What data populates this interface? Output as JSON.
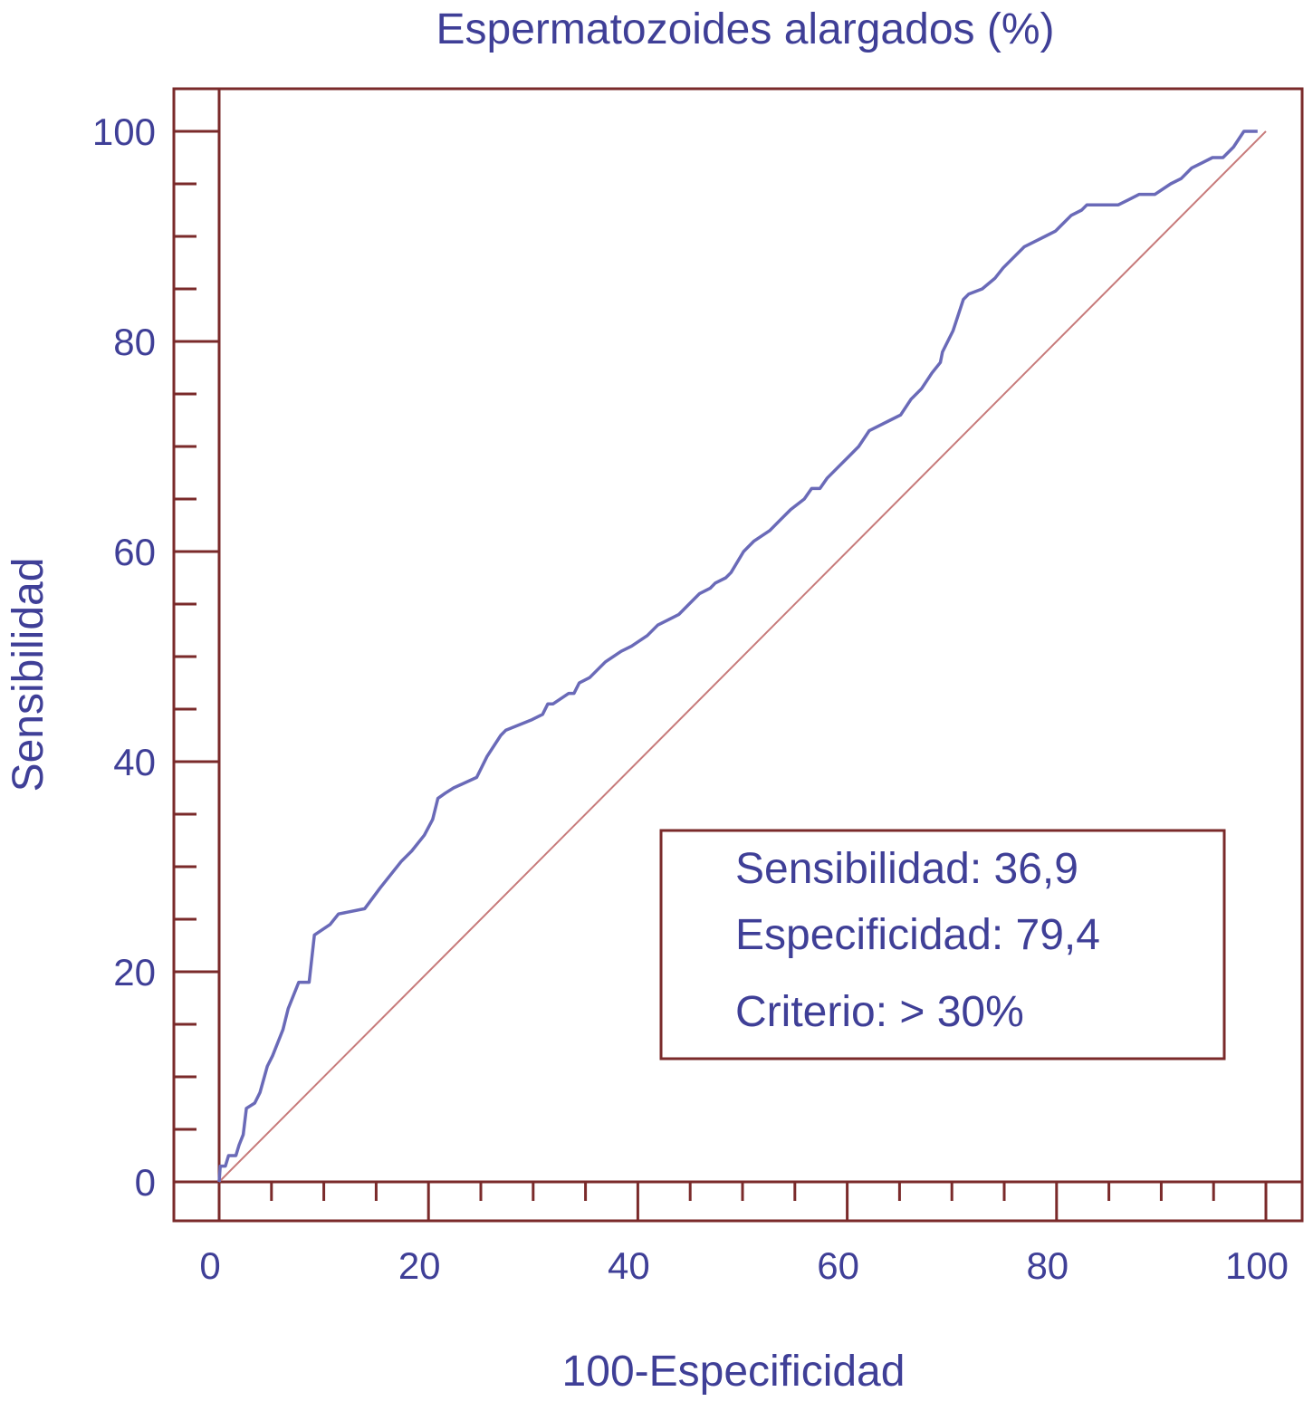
{
  "chart_data": {
    "type": "line",
    "title": "Espermatozoides alargados (%)",
    "xlabel": "100-Especificidad",
    "ylabel": "Sensibilidad",
    "xlim": [
      0,
      100
    ],
    "ylim": [
      0,
      100
    ],
    "x_ticks": [
      "0",
      "20",
      "40",
      "60",
      "80",
      "100"
    ],
    "y_ticks": [
      "0",
      "20",
      "40",
      "60",
      "80",
      "100"
    ],
    "grid": false,
    "series": [
      {
        "color": "#6a6ab8",
        "x": [
          0,
          0.1,
          0.6,
          0.9,
          1.6,
          1.9,
          2.3,
          2.6,
          3.4,
          3.9,
          4.6,
          5.1,
          6.1,
          6.6,
          7.6,
          8.1,
          8.6,
          9.1,
          10.6,
          11.4,
          13.9,
          15.4,
          17.4,
          18.4,
          19.6,
          20.4,
          20.9,
          21.6,
          22.4,
          24.6,
          25.6,
          26.9,
          27.4,
          29.9,
          30.9,
          31.4,
          31.9,
          33.4,
          33.9,
          34.4,
          35.4,
          36.9,
          38.4,
          39.4,
          40.9,
          41.9,
          42.9,
          43.9,
          44.9,
          45.9,
          46.9,
          47.4,
          48.4,
          48.9,
          50.1,
          51.1,
          52.6,
          53.6,
          54.6,
          55.9,
          56.6,
          57.4,
          58.1,
          59.1,
          60.1,
          61.1,
          62.1,
          63.1,
          64.1,
          65.1,
          66.1,
          67.1,
          68.1,
          68.9,
          69.1,
          70.1,
          71.1,
          71.6,
          72.9,
          74.1,
          74.9,
          75.9,
          76.9,
          77.9,
          78.9,
          79.9,
          80.4,
          81.4,
          82.4,
          82.9,
          83.9,
          84.9,
          85.9,
          86.9,
          87.9,
          88.9,
          89.4,
          90.9,
          91.9,
          92.9,
          93.9,
          94.9,
          95.9,
          96.9,
          97.9,
          99.2
        ],
        "y": [
          0,
          1.5,
          1.5,
          2.5,
          2.5,
          3.5,
          4.5,
          7.0,
          7.5,
          8.5,
          11.0,
          12.0,
          14.5,
          16.5,
          19.0,
          19.0,
          19.0,
          23.5,
          24.5,
          25.5,
          26.0,
          28.0,
          30.5,
          31.5,
          33.0,
          34.5,
          36.5,
          37.0,
          37.5,
          38.5,
          40.5,
          42.5,
          43.0,
          44.0,
          44.5,
          45.5,
          45.5,
          46.5,
          46.5,
          47.5,
          48.0,
          49.5,
          50.5,
          51.0,
          52.0,
          53.0,
          53.5,
          54.0,
          55.0,
          56.0,
          56.5,
          57.0,
          57.5,
          58.0,
          60.0,
          61.0,
          62.0,
          63.0,
          64.0,
          65.0,
          66.0,
          66.0,
          67.0,
          68.0,
          69.0,
          70.0,
          71.5,
          72.0,
          72.5,
          73.0,
          74.5,
          75.5,
          77.0,
          78.0,
          79.0,
          81.0,
          84.0,
          84.5,
          85.0,
          86.0,
          87.0,
          88.0,
          89.0,
          89.5,
          90.0,
          90.5,
          91.0,
          92.0,
          92.5,
          93.0,
          93.0,
          93.0,
          93.0,
          93.5,
          94.0,
          94.0,
          94.0,
          95.0,
          95.5,
          96.5,
          97.0,
          97.5,
          97.5,
          98.5,
          100,
          100
        ]
      },
      {
        "color": "#c77a7a",
        "x": [
          0,
          100
        ],
        "y": [
          0,
          100
        ]
      }
    ],
    "annotations": [
      "Sensibilidad: 36,9",
      "Especificidad: 79,4",
      "Criterio: > 30%"
    ]
  },
  "colors": {
    "frame": "#7a2a2a",
    "text": "#3f3f97",
    "roc_line": "#6a6ab8",
    "diagonal": "#c77a7a"
  }
}
